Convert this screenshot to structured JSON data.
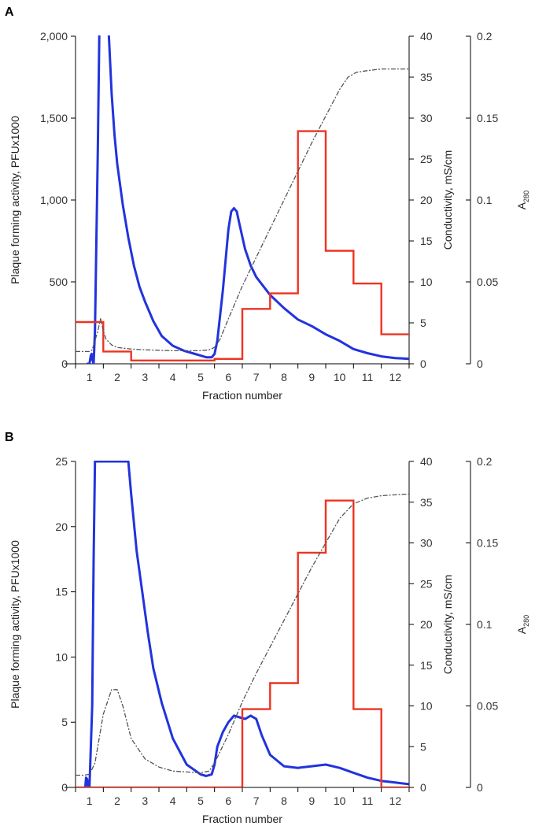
{
  "colors": {
    "a280": "#2233dd",
    "pfu": "#ee3322",
    "conductivity": "#555555"
  },
  "chart_data": [
    {
      "panel": "A",
      "type": "line",
      "xlabel": "Fraction number",
      "x_ticks": [
        "1",
        "2",
        "3",
        "4",
        "5",
        "6",
        "7",
        "8",
        "9",
        "10",
        "11",
        "12"
      ],
      "xlim": [
        0.5,
        12.5
      ],
      "y_left": {
        "label": "Plaque forming activity, PFUx1000",
        "ylim": [
          0,
          2000
        ],
        "ticks": [
          0,
          500,
          1000,
          1500,
          2000
        ],
        "tick_labels": [
          "0",
          "500",
          "1,000",
          "1,500",
          "2,000"
        ]
      },
      "y_right1": {
        "label": "Conductivity, mS/cm",
        "ylim": [
          0,
          40
        ],
        "ticks": [
          0,
          5,
          10,
          15,
          20,
          25,
          30,
          35,
          40
        ],
        "tick_labels": [
          "0",
          "5",
          "10",
          "15",
          "20",
          "25",
          "30",
          "35",
          "40"
        ]
      },
      "y_right2": {
        "label": "A",
        "label_sub": "280",
        "ylim": [
          0,
          0.2
        ],
        "ticks": [
          0,
          0.05,
          0.1,
          0.15,
          0.2
        ],
        "tick_labels": [
          "0",
          "0.05",
          "0.1",
          "0.15",
          "0.2"
        ]
      },
      "series": [
        {
          "key": "a280",
          "axis": "y_right2",
          "style": "solid",
          "x": [
            0.9,
            1.0,
            1.05,
            1.08,
            1.1,
            1.15,
            1.2,
            1.3,
            1.4,
            1.5,
            1.6,
            1.7,
            1.8,
            1.9,
            2.0,
            2.2,
            2.4,
            2.6,
            2.8,
            3.0,
            3.3,
            3.6,
            4.0,
            4.4,
            4.8,
            5.0,
            5.2,
            5.4,
            5.5,
            5.6,
            5.8,
            6.0,
            6.1,
            6.2,
            6.3,
            6.4,
            6.6,
            6.8,
            7.0,
            7.5,
            8.0,
            8.5,
            9.0,
            9.5,
            10.0,
            10.5,
            11.0,
            11.5,
            12.0,
            12.5
          ],
          "y": [
            0,
            0,
            0.005,
            0.006,
            0.003,
            0,
            0.02,
            0.13,
            0.26,
            0.29,
            0.255,
            0.2,
            0.165,
            0.14,
            0.122,
            0.097,
            0.077,
            0.06,
            0.047,
            0.038,
            0.026,
            0.017,
            0.011,
            0.008,
            0.006,
            0.005,
            0.004,
            0.004,
            0.006,
            0.014,
            0.045,
            0.082,
            0.093,
            0.095,
            0.093,
            0.085,
            0.07,
            0.06,
            0.053,
            0.042,
            0.034,
            0.027,
            0.023,
            0.018,
            0.014,
            0.009,
            0.0065,
            0.0045,
            0.0035,
            0.003
          ]
        },
        {
          "key": "pfu",
          "axis": "y_left",
          "style": "step",
          "x": [
            0.5,
            1.5,
            1.5,
            2.5,
            2.5,
            5.5,
            5.5,
            6.5,
            6.5,
            7.5,
            7.5,
            8.5,
            8.5,
            9.5,
            9.5,
            10.5,
            10.5,
            11.5,
            11.5,
            12.5
          ],
          "y": [
            255,
            255,
            75,
            75,
            20,
            20,
            30,
            30,
            335,
            335,
            430,
            430,
            1420,
            1420,
            690,
            690,
            490,
            490,
            180,
            180
          ]
        },
        {
          "key": "conductivity",
          "axis": "y_right1",
          "style": "dashed",
          "x": [
            0.5,
            1.0,
            1.1,
            1.3,
            1.4,
            1.5,
            1.6,
            1.8,
            2.0,
            2.5,
            3.0,
            4.0,
            5.0,
            5.3,
            5.5,
            5.7,
            6.0,
            6.5,
            7.0,
            8.0,
            9.0,
            10.0,
            10.3,
            10.6,
            11.0,
            11.5,
            12.0,
            12.5
          ],
          "y": [
            1.5,
            1.5,
            1.7,
            4.0,
            5.5,
            4.0,
            3.0,
            2.3,
            2.0,
            1.8,
            1.7,
            1.6,
            1.6,
            1.7,
            2.0,
            3.0,
            5.5,
            9.5,
            13.0,
            20.0,
            27.0,
            33.5,
            35.0,
            35.6,
            35.8,
            36.0,
            36.0,
            36.0
          ]
        }
      ]
    },
    {
      "panel": "B",
      "type": "line",
      "xlabel": "Fraction number",
      "x_ticks": [
        "1",
        "2",
        "3",
        "4",
        "5",
        "6",
        "7",
        "8",
        "9",
        "10",
        "11",
        "12"
      ],
      "xlim": [
        0.5,
        12.5
      ],
      "y_left": {
        "label": "Plaque forming activity, PFUx1000",
        "ylim": [
          0,
          25
        ],
        "ticks": [
          0,
          5,
          10,
          15,
          20,
          25
        ],
        "tick_labels": [
          "0",
          "5",
          "10",
          "15",
          "20",
          "25"
        ]
      },
      "y_right1": {
        "label": "Conductivity, mS/cm",
        "ylim": [
          0,
          40
        ],
        "ticks": [
          0,
          5,
          10,
          15,
          20,
          25,
          30,
          35,
          40
        ],
        "tick_labels": [
          "0",
          "5",
          "10",
          "15",
          "20",
          "25",
          "30",
          "35",
          "40"
        ]
      },
      "y_right2": {
        "label": "A",
        "label_sub": "280",
        "ylim": [
          0,
          0.2
        ],
        "ticks": [
          0,
          0.05,
          0.1,
          0.15,
          0.2
        ],
        "tick_labels": [
          "0",
          "0.05",
          "0.1",
          "0.15",
          "0.2"
        ]
      },
      "series": [
        {
          "key": "a280",
          "axis": "y_right2",
          "style": "solid",
          "x": [
            0.85,
            0.88,
            0.92,
            0.95,
            1.0,
            1.1,
            1.15,
            1.2,
            1.3,
            1.4,
            2.3,
            2.4,
            2.5,
            2.7,
            2.9,
            3.1,
            3.3,
            3.6,
            4.0,
            4.5,
            5.0,
            5.2,
            5.4,
            5.5,
            5.6,
            5.8,
            6.0,
            6.2,
            6.4,
            6.6,
            6.8,
            7.0,
            7.2,
            7.5,
            8.0,
            8.5,
            9.0,
            9.5,
            10.0,
            10.5,
            11.0,
            11.5,
            12.0,
            12.5
          ],
          "y": [
            0,
            0.006,
            0.005,
            0,
            0,
            0.05,
            0.14,
            0.2,
            0.2,
            0.2,
            0.2,
            0.2,
            0.18,
            0.145,
            0.12,
            0.095,
            0.073,
            0.052,
            0.03,
            0.014,
            0.008,
            0.007,
            0.008,
            0.014,
            0.025,
            0.034,
            0.04,
            0.044,
            0.043,
            0.042,
            0.044,
            0.042,
            0.032,
            0.02,
            0.013,
            0.012,
            0.013,
            0.014,
            0.012,
            0.009,
            0.006,
            0.004,
            0.003,
            0.002
          ]
        },
        {
          "key": "pfu",
          "axis": "y_left",
          "style": "step",
          "x": [
            0.5,
            6.5,
            6.5,
            7.5,
            7.5,
            8.5,
            8.5,
            9.5,
            9.5,
            10.5,
            10.5,
            11.5,
            11.5,
            12.5
          ],
          "y": [
            0,
            0,
            6.0,
            6.0,
            8.0,
            8.0,
            18.0,
            18.0,
            22.0,
            22.0,
            6.0,
            6.0,
            0,
            0
          ]
        },
        {
          "key": "conductivity",
          "axis": "y_right1",
          "style": "dashed",
          "x": [
            0.5,
            0.8,
            1.0,
            1.2,
            1.5,
            1.8,
            2.0,
            2.2,
            2.5,
            3.0,
            3.5,
            4.0,
            5.0,
            5.3,
            5.5,
            6.0,
            6.5,
            7.0,
            8.0,
            9.0,
            10.0,
            10.5,
            11.0,
            11.5,
            12.0,
            12.5
          ],
          "y": [
            1.5,
            1.5,
            1.6,
            3.0,
            9.0,
            12.0,
            12.0,
            10.0,
            6.0,
            3.5,
            2.5,
            2.0,
            1.8,
            2.0,
            3.0,
            6.5,
            10.5,
            14.0,
            20.5,
            27.0,
            33.0,
            34.8,
            35.5,
            35.8,
            35.9,
            36.0
          ]
        }
      ]
    }
  ]
}
